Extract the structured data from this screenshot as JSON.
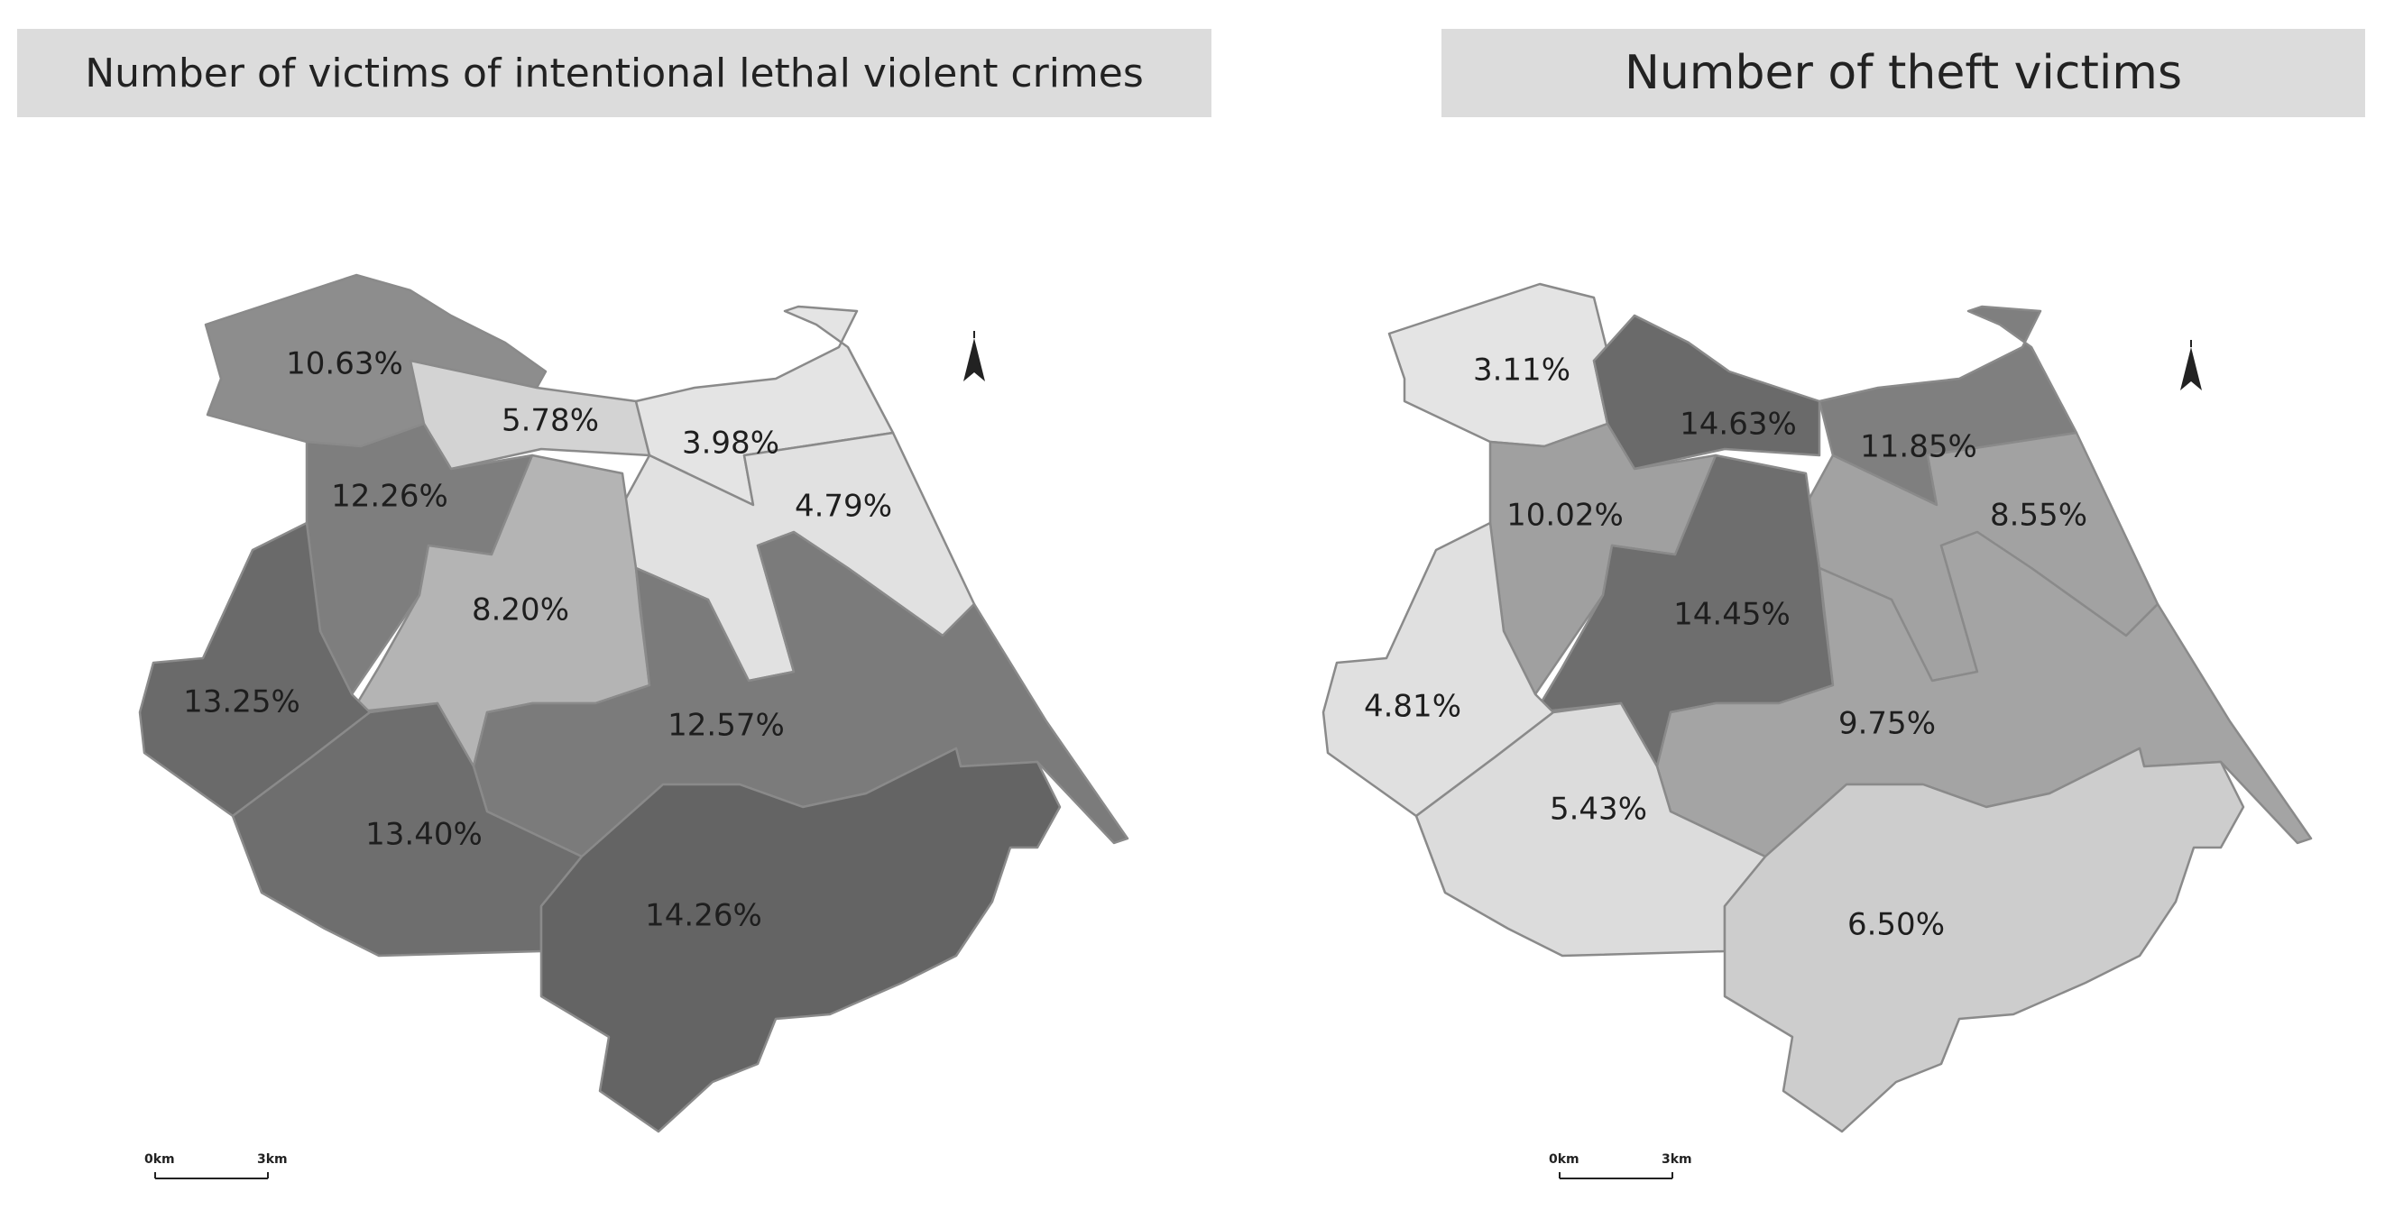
{
  "panels": [
    {
      "title": "Number of victims of intentional lethal violent crimes",
      "regions": [
        {
          "id": "nw",
          "label": "10.63%",
          "fill": "#8d8d8d"
        },
        {
          "id": "nc",
          "label": "5.78%",
          "fill": "#d3d3d3"
        },
        {
          "id": "ne",
          "label": "3.98%",
          "fill": "#e4e4e4"
        },
        {
          "id": "e",
          "label": "4.79%",
          "fill": "#e1e1e1"
        },
        {
          "id": "w1",
          "label": "12.26%",
          "fill": "#7e7e7e"
        },
        {
          "id": "c",
          "label": "8.20%",
          "fill": "#b4b4b4"
        },
        {
          "id": "w2",
          "label": "13.25%",
          "fill": "#6a6a6a"
        },
        {
          "id": "ce",
          "label": "12.57%",
          "fill": "#7b7b7b"
        },
        {
          "id": "sw",
          "label": "13.40%",
          "fill": "#6e6e6e"
        },
        {
          "id": "se",
          "label": "14.26%",
          "fill": "#646464"
        }
      ],
      "scale": {
        "start": "0km",
        "end": "3km"
      }
    },
    {
      "title": "Number of theft victims",
      "regions": [
        {
          "id": "nw",
          "label": "3.11%",
          "fill": "#e4e4e4"
        },
        {
          "id": "nc",
          "label": "14.63%",
          "fill": "#6a6a6a"
        },
        {
          "id": "ne",
          "label": "11.85%",
          "fill": "#7f7f7f"
        },
        {
          "id": "e",
          "label": "8.55%",
          "fill": "#a2a2a2"
        },
        {
          "id": "w1",
          "label": "10.02%",
          "fill": "#a0a0a0"
        },
        {
          "id": "c",
          "label": "14.45%",
          "fill": "#6e6e6e"
        },
        {
          "id": "w2",
          "label": "4.81%",
          "fill": "#e0e0e0"
        },
        {
          "id": "ce",
          "label": "9.75%",
          "fill": "#a4a4a4"
        },
        {
          "id": "sw",
          "label": "5.43%",
          "fill": "#dcdcdc"
        },
        {
          "id": "se",
          "label": "6.50%",
          "fill": "#cdcdcd"
        }
      ],
      "scale": {
        "start": "0km",
        "end": "3km"
      }
    }
  ]
}
